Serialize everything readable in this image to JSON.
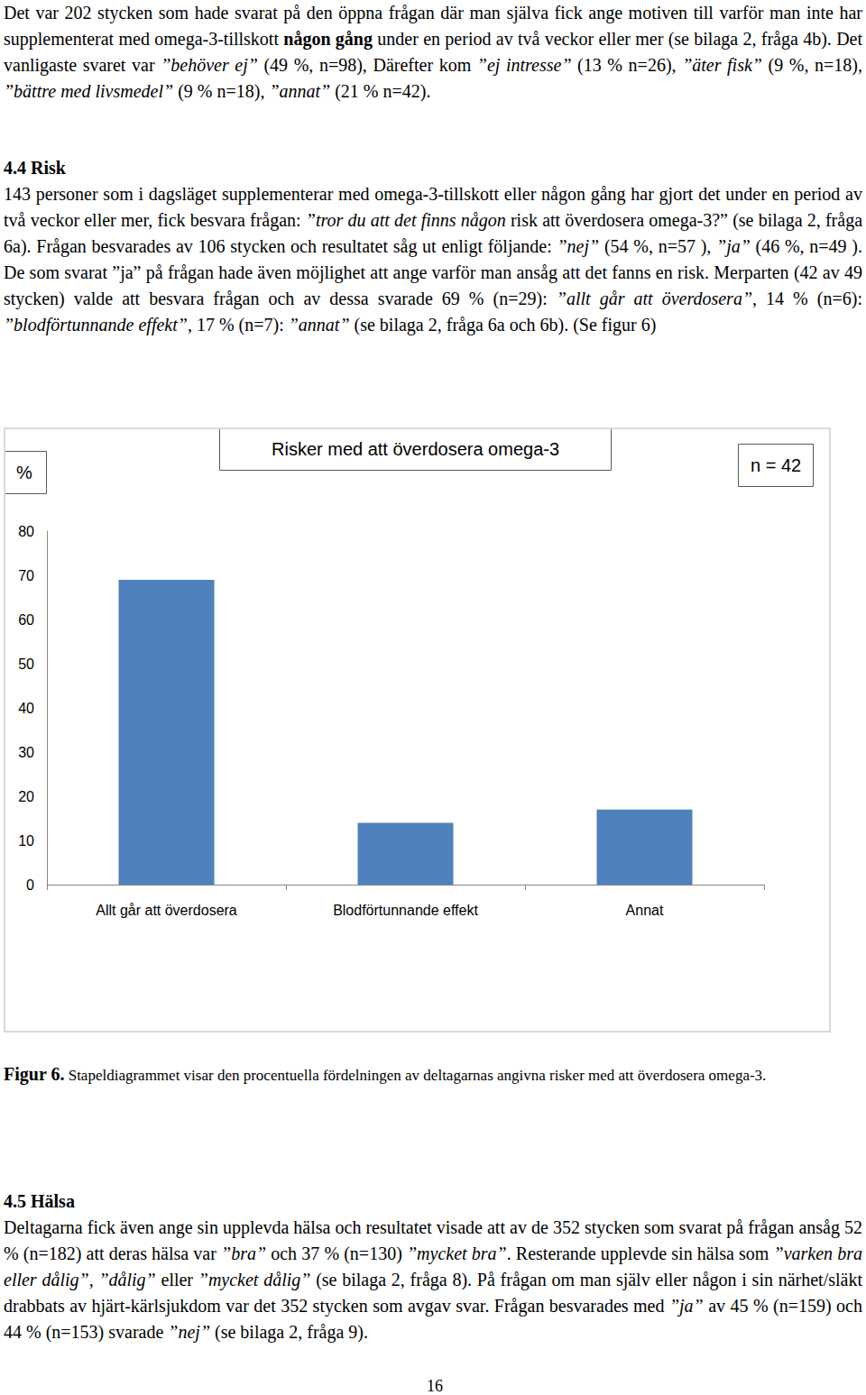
{
  "paragraph_1": [
    {
      "t": "Det var 202 stycken som hade svarat på den öppna frågan där man själva fick ange motiven till varför man inte har supplementerat med omega-3-tillskott "
    },
    {
      "t": "någon gång",
      "b": true
    },
    {
      "t": " under en period av två veckor eller mer (se bilaga 2, fråga 4b). Det vanligaste svaret var "
    },
    {
      "t": "”behöver ej”",
      "i": true
    },
    {
      "t": " (49 %, n=98), Därefter kom "
    },
    {
      "t": "”ej intresse”",
      "i": true
    },
    {
      "t": " (13 % n=26), "
    },
    {
      "t": "”äter fisk”",
      "i": true
    },
    {
      "t": " (9 %, n=18), "
    },
    {
      "t": "”bättre med livsmedel”",
      "i": true
    },
    {
      "t": " (9 % n=18), "
    },
    {
      "t": "”annat”",
      "i": true
    },
    {
      "t": " (21 % n=42)."
    }
  ],
  "section_4_4": {
    "heading": "4.4 Risk",
    "paragraph": [
      {
        "t": "143 personer som i dagsläget supplementerar med omega-3-tillskott eller någon gång har gjort det under en period av två veckor eller mer, fick besvara frågan: "
      },
      {
        "t": "”tror du att det finns någon",
        "i": true
      },
      {
        "t": " risk att överdosera omega-3?”"
      },
      {
        "t": " (se bilaga 2, fråga 6a). Frågan besvarades av 106 stycken och resultatet såg ut enligt följande: "
      },
      {
        "t": "”nej”",
        "i": true
      },
      {
        "t": " (54 %, n=57 ), "
      },
      {
        "t": "”ja”",
        "i": true
      },
      {
        "t": " (46 %, n=49 ). De som svarat ”ja” på frågan hade även möjlighet att ange varför man ansåg att det fanns en risk. Merparten (42 av 49 stycken) valde att besvara frågan och av dessa svarade 69 % (n=29): "
      },
      {
        "t": "”allt går att överdosera”",
        "i": true
      },
      {
        "t": ", 14 % (n=6): "
      },
      {
        "t": "”blodförtunnande effekt”",
        "i": true
      },
      {
        "t": ", 17 % (n=7): "
      },
      {
        "t": "”annat”",
        "i": true
      },
      {
        "t": " (se bilaga 2, fråga 6a och 6b). (Se figur 6)"
      }
    ]
  },
  "chart_data": {
    "type": "bar",
    "title": "Risker med att överdosera omega-3",
    "y_label": "%",
    "annotation": "n = 42",
    "categories": [
      "Allt går att överdosera",
      "Blodförtunnande effekt",
      "Annat"
    ],
    "values": [
      69,
      14,
      17
    ],
    "color": "#4f81bd",
    "ylim": [
      0,
      80
    ],
    "yticks": [
      0,
      10,
      20,
      30,
      40,
      50,
      60,
      70,
      80
    ],
    "grid": false
  },
  "figure_caption": [
    {
      "t": "Figur 6.",
      "b": true
    },
    {
      "t": " Stapeldiagrammet visar den procentuella fördelningen av deltagarnas angivna risker med att överdosera omega-3."
    }
  ],
  "section_4_5": {
    "heading": "4.5 Hälsa",
    "paragraph": [
      {
        "t": "Deltagarna fick även ange sin upplevda hälsa och resultatet visade att av de 352 stycken som svarat på frågan ansåg 52 % (n=182) att deras hälsa var "
      },
      {
        "t": "”bra”",
        "i": true
      },
      {
        "t": " och 37 % (n=130) "
      },
      {
        "t": "”mycket bra”",
        "i": true
      },
      {
        "t": ". Resterande upplevde sin hälsa som "
      },
      {
        "t": "”varken bra eller dålig”, ”dålig”",
        "i": true
      },
      {
        "t": " eller "
      },
      {
        "t": "”mycket dålig”",
        "i": true
      },
      {
        "t": " (se bilaga 2, fråga 8). På frågan om man själv eller någon i sin närhet/släkt drabbats av hjärt-kärlsjukdom var det 352 stycken som avgav svar. Frågan besvarades med "
      },
      {
        "t": "”ja”",
        "i": true
      },
      {
        "t": " av 45 % (n=159) och 44 % (n=153) svarade "
      },
      {
        "t": "”nej”",
        "i": true
      },
      {
        "t": " (se bilaga 2, fråga 9)."
      }
    ]
  },
  "page_number": "16"
}
